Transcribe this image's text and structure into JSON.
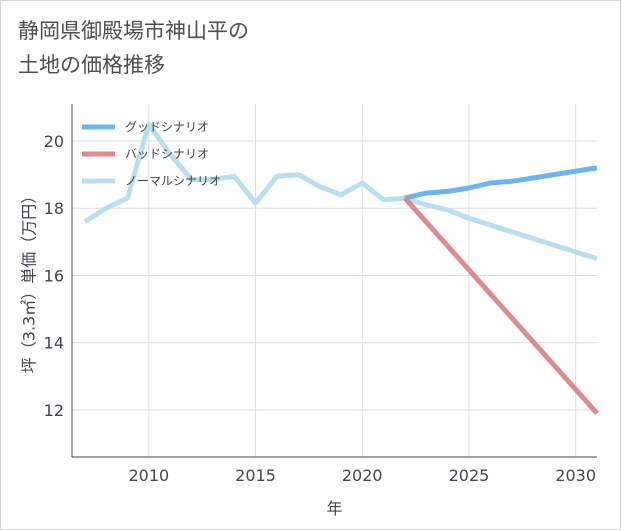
{
  "title": "静岡県御殿場市神山平の\n土地の価格推移",
  "chart_data": {
    "type": "line",
    "xlabel": "年",
    "ylabel": "坪（3.3㎡）単価（万円）",
    "xlim": [
      2006.4,
      2031
    ],
    "ylim": [
      10.6,
      21.1
    ],
    "xticks": [
      2010,
      2015,
      2020,
      2025,
      2030
    ],
    "yticks": [
      12,
      14,
      16,
      18,
      20
    ],
    "grid": true,
    "legend_position": "top-left",
    "series": [
      {
        "name": "グッドシナリオ",
        "color": "#6cb4ee",
        "x": [
          2022,
          2023,
          2024,
          2025,
          2026,
          2027,
          2028,
          2029,
          2030,
          2031
        ],
        "y": [
          18.3,
          18.45,
          18.5,
          18.6,
          18.75,
          18.8,
          18.9,
          19.0,
          19.1,
          19.2
        ]
      },
      {
        "name": "バッドシナリオ",
        "color": "#dd8a93",
        "x": [
          2022,
          2031
        ],
        "y": [
          18.3,
          11.9
        ]
      },
      {
        "name": "ノーマルシナリオ",
        "color": "#b9dfee",
        "x": [
          2007,
          2008,
          2009,
          2010,
          2011,
          2012,
          2013,
          2014,
          2015,
          2016,
          2017,
          2018,
          2019,
          2020,
          2021,
          2022,
          2023,
          2024,
          2025,
          2026,
          2027,
          2028,
          2029,
          2030,
          2031
        ],
        "y": [
          17.6,
          18.0,
          18.3,
          20.5,
          19.6,
          18.85,
          18.85,
          18.95,
          18.15,
          18.95,
          19.0,
          18.65,
          18.4,
          18.75,
          18.25,
          18.3,
          18.1,
          17.95,
          17.7,
          17.5,
          17.3,
          17.1,
          16.9,
          16.7,
          16.5
        ]
      }
    ]
  }
}
